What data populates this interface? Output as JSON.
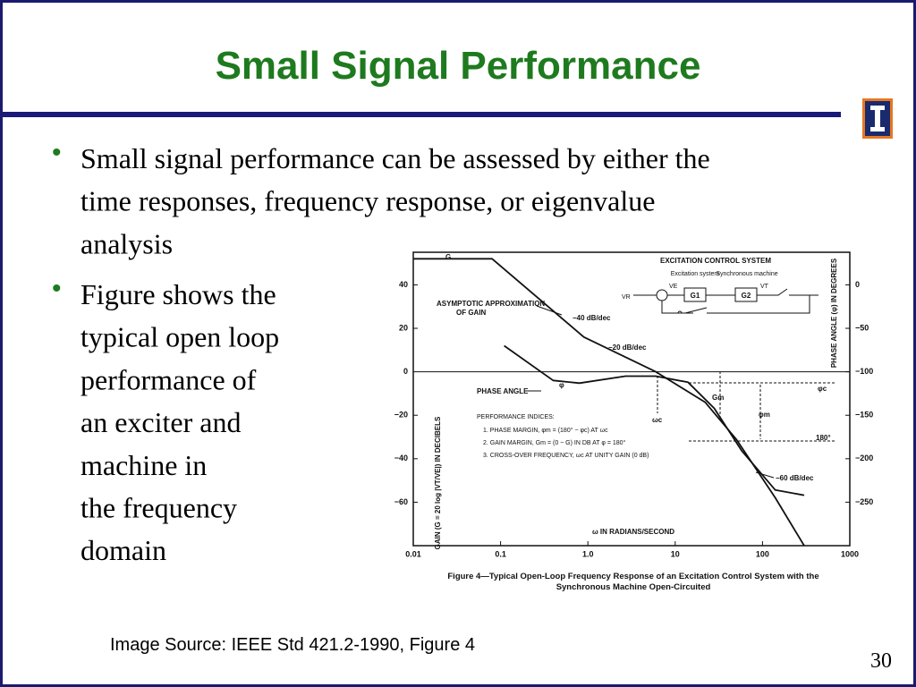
{
  "header": {
    "title": "Small Signal Performance"
  },
  "bullets": [
    {
      "lines": [
        "Small signal performance can be assessed by either the",
        "time responses, frequency response, or eigenvalue",
        "analysis"
      ]
    },
    {
      "lines": [
        "Figure shows the",
        "typical open loop",
        "performance of",
        "an exciter and",
        "machine in",
        "the frequency",
        "domain"
      ]
    }
  ],
  "source": "Image Source: IEEE Std 421.2-1990, Figure 4",
  "page_number": "30",
  "chart_data": {
    "type": "line",
    "caption": [
      "Figure 4—Typical Open-Loop Frequency Response of an Excitation Control System with the",
      "Synchronous Machine Open-Circuited"
    ],
    "xlabel": "ω IN RADIANS/SECOND",
    "ylabel": "GAIN (G = 20 log |VT/VE|) IN DECIBELS",
    "y2label": "PHASE ANGLE (φ) IN DEGREES",
    "xscale": "log",
    "xlim": [
      0.01,
      1000
    ],
    "xticks": [
      0.01,
      0.1,
      {
        "value": 1,
        "label": "1.0"
      },
      10,
      100,
      1000
    ],
    "ylim": [
      -80,
      55
    ],
    "yticks": [
      {
        "value": -60,
        "label": "−60"
      },
      {
        "value": -40,
        "label": "−40"
      },
      {
        "value": -20,
        "label": "−20"
      },
      0,
      20,
      40
    ],
    "y2lim": [
      -300,
      37.5
    ],
    "y2ticks": [
      {
        "value": -250,
        "label": "−250"
      },
      {
        "value": -200,
        "label": "−200"
      },
      {
        "value": -150,
        "label": "−150"
      },
      {
        "value": -100,
        "label": "−100"
      },
      {
        "value": -50,
        "label": "−50"
      },
      0
    ],
    "series": [
      {
        "name": "G",
        "color": "#111111",
        "x": [
          0.01,
          0.08,
          0.9,
          6,
          22,
          50,
          140,
          300
        ],
        "values": [
          52,
          52,
          16,
          0,
          -14,
          -31,
          -58,
          -80
        ]
      },
      {
        "name": "PHASE ANGLE",
        "color": "#111111",
        "axis": "y2",
        "x": [
          0.11,
          0.4,
          0.8,
          2.7,
          6,
          14,
          28,
          58,
          140,
          300
        ],
        "values": [
          -70,
          -110,
          -113,
          -105,
          -105,
          -112,
          -142,
          -191,
          -236,
          -242
        ]
      }
    ],
    "annotations": [
      "ASYMPTOTIC APPROXIMATION",
      "OF GAIN",
      "−40 dB/dec",
      "−20 dB/dec",
      "−60 dB/dec",
      "φ",
      "ωc",
      "Gm",
      "φc",
      "φm",
      "180°",
      "PERFORMANCE INDICES:",
      "1. PHASE MARGIN, φm = (180° − φc) AT ωc",
      "2. GAIN MARGIN, Gm = (0 − G) IN DB AT φ = 180°",
      "3. CROSS-OVER FREQUENCY, ωc AT UNITY GAIN (0 dB)"
    ],
    "diagram": {
      "title": "EXCITATION CONTROL SYSTEM",
      "block1_label": "Excitation system",
      "block2_label": "Synchronous machine",
      "input": "VR",
      "error": "VE",
      "output": "VT",
      "block1": "G1",
      "block2": "G2"
    }
  }
}
